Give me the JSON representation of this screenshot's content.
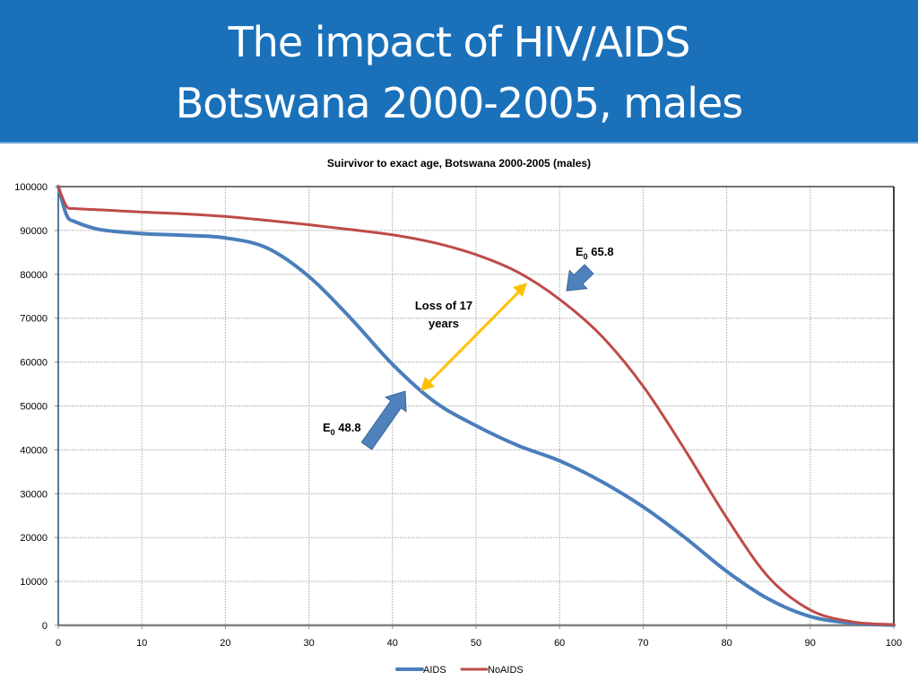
{
  "slide": {
    "title_line1": "The impact of HIV/AIDS",
    "title_line2": "Botswana 2000-2005, males",
    "header_color": "#1a71ba"
  },
  "chart_data": {
    "type": "line",
    "title": "Suirvivor to exact age, Botswana 2000-2005 (males)",
    "xlabel": "",
    "ylabel": "",
    "xlim": [
      0,
      100
    ],
    "ylim": [
      0,
      100000
    ],
    "x_ticks": [
      0,
      10,
      20,
      30,
      40,
      50,
      60,
      70,
      80,
      90,
      100
    ],
    "y_ticks": [
      0,
      10000,
      20000,
      30000,
      40000,
      50000,
      60000,
      70000,
      80000,
      90000,
      100000
    ],
    "grid": true,
    "legend_position": "bottom",
    "x": [
      0,
      1,
      2,
      5,
      10,
      15,
      20,
      25,
      30,
      35,
      40,
      45,
      50,
      55,
      60,
      65,
      70,
      75,
      80,
      85,
      90,
      95,
      100
    ],
    "series": [
      {
        "name": "AIDS",
        "color": "#4a7ebb",
        "values": [
          100000,
          93500,
          92000,
          90200,
          89300,
          88900,
          88300,
          86000,
          79500,
          70000,
          59500,
          51000,
          45500,
          41000,
          37500,
          32800,
          27000,
          20000,
          12300,
          6000,
          2000,
          500,
          50
        ]
      },
      {
        "name": "NoAIDS",
        "color": "#be4b48",
        "values": [
          100000,
          95500,
          95000,
          94700,
          94200,
          93800,
          93200,
          92300,
          91300,
          90200,
          89000,
          87200,
          84500,
          80500,
          74300,
          66000,
          54500,
          40000,
          24500,
          11000,
          3500,
          800,
          150
        ]
      }
    ],
    "annotations": [
      {
        "id": "e0-noaids",
        "text_main": "E",
        "text_sub": "0",
        "text_value": " 65.8",
        "points_to": {
          "x": 62,
          "y": 76000
        },
        "arrow_color": "#4f81bd"
      },
      {
        "id": "e0-aids",
        "text_main": "E",
        "text_sub": "0",
        "text_value": " 48.8",
        "points_to": {
          "x": 42,
          "y": 54000
        },
        "arrow_color": "#4f81bd"
      },
      {
        "id": "loss",
        "text_line1": "Loss of 17",
        "text_line2": "years",
        "from": {
          "x": 44,
          "y": 53000
        },
        "to": {
          "x": 56,
          "y": 78000
        },
        "arrow_color": "#ffc000"
      }
    ]
  }
}
